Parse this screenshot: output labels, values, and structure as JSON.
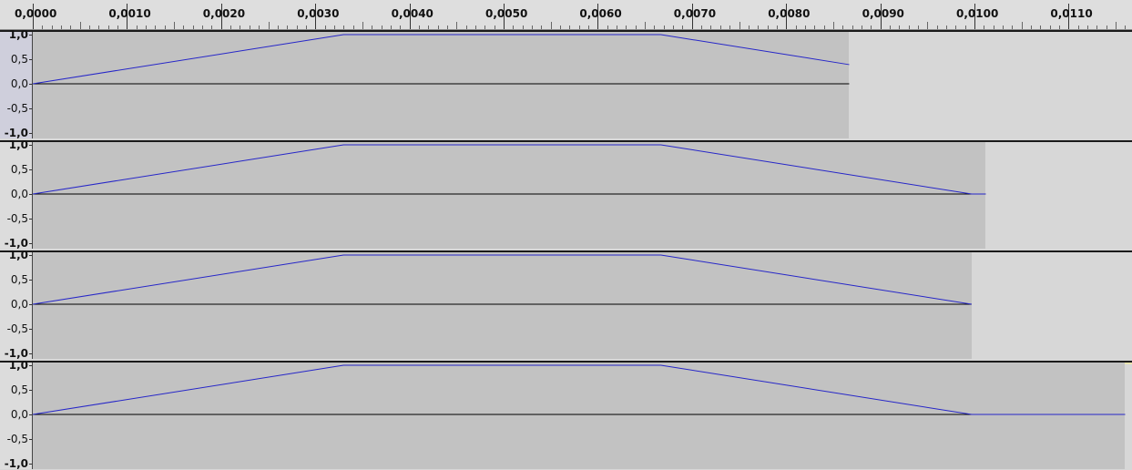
{
  "timeline": {
    "labels": [
      "0,0000",
      "0,0010",
      "0,0020",
      "0,0030",
      "0,0040",
      "0,0050",
      "0,0060",
      "0,0070",
      "0,0080",
      "0,0090",
      "0,0100",
      "0,0110"
    ]
  },
  "amplitude_scale": {
    "labels": [
      "1,0",
      "0,5",
      "0,0",
      "-0,5",
      "-1,0"
    ]
  },
  "tracks": [
    {
      "id": "track-1",
      "clip_end_s": 0.00867,
      "selected": true,
      "envelope": [
        [
          0,
          0
        ],
        [
          0.0033,
          1
        ],
        [
          0.00667,
          1
        ],
        [
          0.00867,
          0.39
        ]
      ]
    },
    {
      "id": "track-2",
      "clip_end_s": 0.01012,
      "selected": false,
      "envelope": [
        [
          0,
          0
        ],
        [
          0.0033,
          1
        ],
        [
          0.00667,
          1
        ],
        [
          0.00997,
          0
        ],
        [
          0.01012,
          0
        ]
      ]
    },
    {
      "id": "track-3",
      "clip_end_s": 0.00997,
      "selected": false,
      "envelope": [
        [
          0,
          0
        ],
        [
          0.0033,
          1
        ],
        [
          0.00667,
          1
        ],
        [
          0.00997,
          0
        ]
      ]
    },
    {
      "id": "track-4",
      "clip_end_s": 0.0116,
      "selected": false,
      "envelope": [
        [
          0,
          0
        ],
        [
          0.0033,
          1
        ],
        [
          0.00667,
          1
        ],
        [
          0.00997,
          0
        ],
        [
          0.0116,
          0
        ]
      ]
    }
  ],
  "colors": {
    "waveform": "#2626c8",
    "clip_background": "#c2c2c2",
    "track_background": "#d7d7d7",
    "selected_track_accent": "#e8e4b0"
  }
}
